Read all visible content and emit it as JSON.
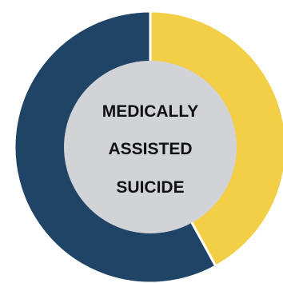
{
  "chart_data": {
    "type": "pie",
    "variant": "donut",
    "title": "",
    "center_label_lines": [
      "MEDICALLY",
      "ASSISTED",
      "SUICIDE"
    ],
    "slices": [
      {
        "value": 42,
        "color": "#F2CF47"
      },
      {
        "value": 58,
        "color": "#1F4466"
      }
    ],
    "start_angle_deg": 0,
    "direction": "clockwise",
    "separator_color": "#ffffff",
    "hole_color": "#D1D3D6",
    "legend": "none"
  }
}
